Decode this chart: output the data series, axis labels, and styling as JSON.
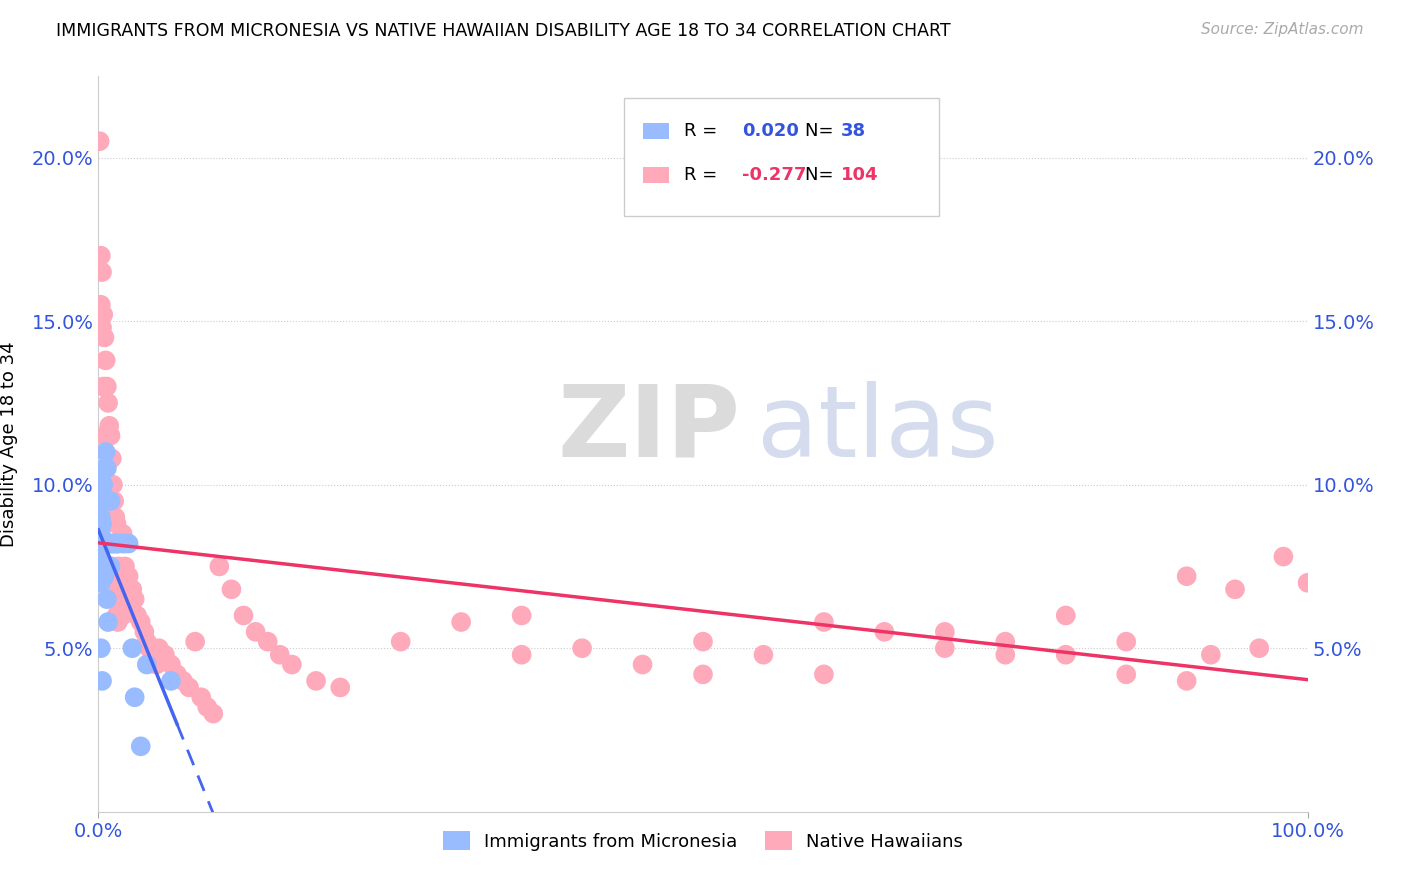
{
  "title": "IMMIGRANTS FROM MICRONESIA VS NATIVE HAWAIIAN DISABILITY AGE 18 TO 34 CORRELATION CHART",
  "source": "Source: ZipAtlas.com",
  "ylabel": "Disability Age 18 to 34",
  "ytick_positions": [
    0.05,
    0.1,
    0.15,
    0.2
  ],
  "ytick_labels": [
    "5.0%",
    "10.0%",
    "15.0%",
    "20.0%"
  ],
  "xtick_positions": [
    0.0,
    1.0
  ],
  "xtick_labels": [
    "0.0%",
    "100.0%"
  ],
  "legend_label_blue": "Immigrants from Micronesia",
  "legend_label_pink": "Native Hawaiians",
  "R_blue": 0.02,
  "N_blue": 38,
  "R_pink": -0.277,
  "N_pink": 104,
  "color_blue_dot": "#99BBFF",
  "color_pink_dot": "#FFAABB",
  "color_blue_line": "#4466EE",
  "color_pink_line": "#EE3366",
  "color_blue_text": "#3355DD",
  "color_pink_text": "#EE3366",
  "watermark_zip": "ZIP",
  "watermark_atlas": "atlas",
  "xlim": [
    0.0,
    1.0
  ],
  "ylim": [
    0.0,
    0.225
  ],
  "blue_x": [
    0.001,
    0.001,
    0.002,
    0.002,
    0.002,
    0.002,
    0.002,
    0.003,
    0.003,
    0.003,
    0.003,
    0.003,
    0.004,
    0.004,
    0.005,
    0.005,
    0.006,
    0.006,
    0.007,
    0.007,
    0.008,
    0.008,
    0.009,
    0.01,
    0.01,
    0.011,
    0.012,
    0.013,
    0.015,
    0.016,
    0.02,
    0.022,
    0.025,
    0.028,
    0.03,
    0.035,
    0.04,
    0.06
  ],
  "blue_y": [
    0.083,
    0.078,
    0.09,
    0.085,
    0.075,
    0.07,
    0.05,
    0.095,
    0.088,
    0.082,
    0.075,
    0.04,
    0.1,
    0.082,
    0.105,
    0.072,
    0.11,
    0.082,
    0.105,
    0.065,
    0.082,
    0.058,
    0.082,
    0.095,
    0.075,
    0.082,
    0.082,
    0.082,
    0.082,
    0.082,
    0.082,
    0.082,
    0.082,
    0.05,
    0.035,
    0.02,
    0.045,
    0.04
  ],
  "pink_x": [
    0.001,
    0.001,
    0.002,
    0.002,
    0.002,
    0.002,
    0.003,
    0.003,
    0.003,
    0.003,
    0.004,
    0.004,
    0.004,
    0.005,
    0.005,
    0.005,
    0.006,
    0.006,
    0.006,
    0.007,
    0.007,
    0.007,
    0.008,
    0.008,
    0.008,
    0.009,
    0.009,
    0.01,
    0.01,
    0.01,
    0.011,
    0.011,
    0.012,
    0.012,
    0.013,
    0.013,
    0.014,
    0.014,
    0.015,
    0.015,
    0.016,
    0.016,
    0.017,
    0.018,
    0.019,
    0.02,
    0.02,
    0.022,
    0.025,
    0.028,
    0.03,
    0.032,
    0.035,
    0.038,
    0.04,
    0.042,
    0.045,
    0.048,
    0.05,
    0.055,
    0.06,
    0.065,
    0.07,
    0.075,
    0.08,
    0.085,
    0.09,
    0.095,
    0.1,
    0.11,
    0.12,
    0.13,
    0.14,
    0.15,
    0.16,
    0.18,
    0.2,
    0.25,
    0.3,
    0.35,
    0.4,
    0.45,
    0.5,
    0.55,
    0.6,
    0.65,
    0.7,
    0.75,
    0.8,
    0.85,
    0.9,
    0.92,
    0.94,
    0.96,
    0.98,
    1.0,
    0.35,
    0.5,
    0.6,
    0.7,
    0.75,
    0.8,
    0.85,
    0.9
  ],
  "pink_y": [
    0.205,
    0.082,
    0.17,
    0.155,
    0.09,
    0.082,
    0.165,
    0.148,
    0.095,
    0.082,
    0.152,
    0.13,
    0.082,
    0.145,
    0.115,
    0.082,
    0.138,
    0.1,
    0.082,
    0.13,
    0.095,
    0.082,
    0.125,
    0.09,
    0.072,
    0.118,
    0.075,
    0.115,
    0.092,
    0.072,
    0.108,
    0.075,
    0.1,
    0.072,
    0.095,
    0.068,
    0.09,
    0.065,
    0.088,
    0.06,
    0.082,
    0.058,
    0.075,
    0.07,
    0.065,
    0.085,
    0.06,
    0.075,
    0.072,
    0.068,
    0.065,
    0.06,
    0.058,
    0.055,
    0.052,
    0.05,
    0.048,
    0.045,
    0.05,
    0.048,
    0.045,
    0.042,
    0.04,
    0.038,
    0.052,
    0.035,
    0.032,
    0.03,
    0.075,
    0.068,
    0.06,
    0.055,
    0.052,
    0.048,
    0.045,
    0.04,
    0.038,
    0.052,
    0.058,
    0.048,
    0.05,
    0.045,
    0.052,
    0.048,
    0.042,
    0.055,
    0.055,
    0.048,
    0.06,
    0.052,
    0.072,
    0.048,
    0.068,
    0.05,
    0.078,
    0.07,
    0.06,
    0.042,
    0.058,
    0.05,
    0.052,
    0.048,
    0.042,
    0.04
  ]
}
